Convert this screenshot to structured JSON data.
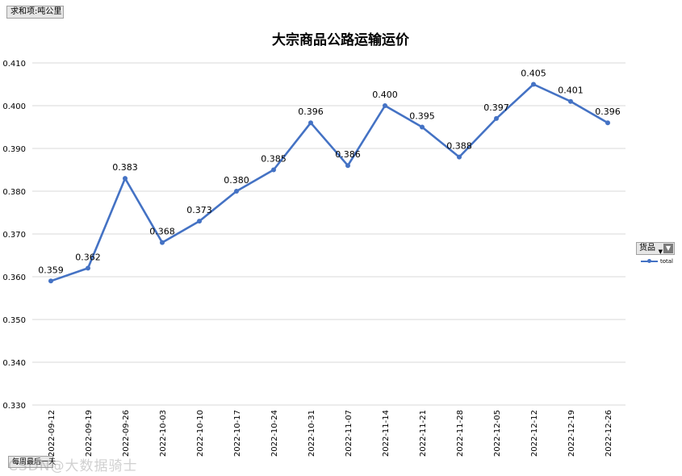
{
  "pivot": {
    "value_field": "求和项:吨公里",
    "axis_field": "每周最后一天",
    "legend_field": "货品"
  },
  "watermark": "CSDN@大数据骑士",
  "colors": {
    "series": "#4472c4",
    "grid": "#d9d9d9"
  },
  "chart_data": {
    "type": "line",
    "title": "大宗商品公路运输运价",
    "xlabel": "",
    "ylabel": "",
    "categories": [
      "2022-09-12",
      "2022-09-19",
      "2022-09-26",
      "2022-10-03",
      "2022-10-10",
      "2022-10-17",
      "2022-10-24",
      "2022-10-31",
      "2022-11-07",
      "2022-11-14",
      "2022-11-21",
      "2022-11-28",
      "2022-12-05",
      "2022-12-12",
      "2022-12-19",
      "2022-12-26"
    ],
    "series": [
      {
        "name": "total",
        "values": [
          0.359,
          0.362,
          0.383,
          0.368,
          0.373,
          0.38,
          0.385,
          0.396,
          0.386,
          0.4,
          0.395,
          0.388,
          0.397,
          0.405,
          0.401,
          0.396
        ],
        "labels": [
          "0.359",
          "0.362",
          "0.383",
          "0.368",
          "0.373",
          "0.380",
          "0.385",
          "0.396",
          "0.386",
          "0.400",
          "0.395",
          "0.388",
          "0.397",
          "0.405",
          "0.401",
          "0.396"
        ]
      }
    ],
    "ylim": [
      0.33,
      0.41
    ],
    "yticks": [
      "0.330",
      "0.340",
      "0.350",
      "0.360",
      "0.370",
      "0.380",
      "0.390",
      "0.400",
      "0.410"
    ],
    "grid": true,
    "legend": "right"
  }
}
